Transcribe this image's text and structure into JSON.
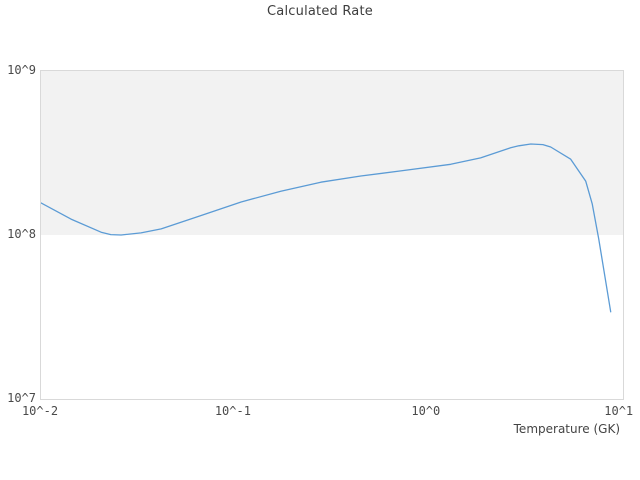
{
  "chart_data": {
    "type": "line",
    "title": "Calculated Rate",
    "xlabel": "Temperature (GK)",
    "ylabel": "",
    "x_scale": "log",
    "y_scale": "log",
    "xlim": [
      0.01,
      10.4
    ],
    "ylim": [
      10000000.0,
      1000000000.0
    ],
    "grid": "off",
    "legend": "none",
    "x_ticks": [
      {
        "value": 0.01,
        "label": "10^-2"
      },
      {
        "value": 0.1,
        "label": "10^-1"
      },
      {
        "value": 1,
        "label": "10^0"
      },
      {
        "value": 10,
        "label": "10^1"
      }
    ],
    "y_ticks": [
      {
        "value": 10000000.0,
        "label": "10^7"
      },
      {
        "value": 100000000.0,
        "label": "10^8"
      },
      {
        "value": 1000000000.0,
        "label": "10^9"
      }
    ],
    "grid_band": {
      "range": [
        100000000.0,
        1000000000.0
      ],
      "fill": "#f2f2f2"
    },
    "series": [
      {
        "name": "calculated-rate",
        "color": "#5b9bd5",
        "x": [
          0.01,
          0.0143,
          0.0205,
          0.023,
          0.026,
          0.033,
          0.042,
          0.067,
          0.109,
          0.175,
          0.282,
          0.455,
          0.733,
          1.33,
          1.9,
          2.72,
          3.0,
          3.46,
          4.0,
          4.39,
          5.57,
          6.66,
          7.2,
          7.78,
          8.98
        ],
        "y": [
          157000000.0,
          125000000.0,
          104000000.0,
          100500000.0,
          100000000.0,
          103000000.0,
          109000000.0,
          131000000.0,
          159000000.0,
          185000000.0,
          210000000.0,
          229000000.0,
          246000000.0,
          270000000.0,
          295000000.0,
          340000000.0,
          350000000.0,
          359000000.0,
          356000000.0,
          344000000.0,
          290000000.0,
          213000000.0,
          155000000.0,
          95000000.0,
          34000000.0
        ]
      }
    ]
  },
  "colors": {
    "plot_border": "#d9d9d9",
    "band_fill": "#f2f2f2",
    "line": "#5b9bd5",
    "title_text": "#3d3d3d",
    "tick_text": "#4a4a4a"
  }
}
